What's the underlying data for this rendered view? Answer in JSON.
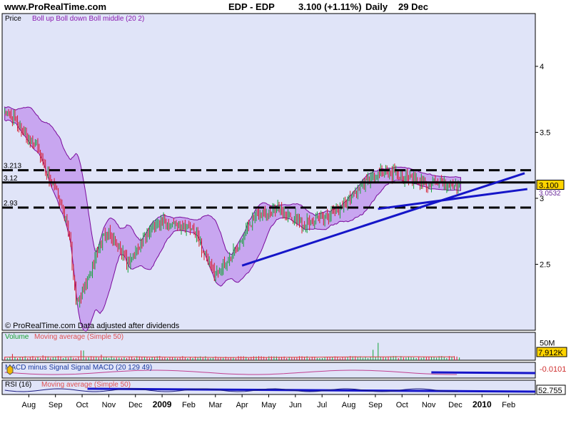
{
  "header": {
    "site": "www.ProRealTime.com",
    "instrument": "EDP - EDP",
    "quote": "3.100 (+1.11%)",
    "timeframe": "Daily",
    "date": "29 Dec"
  },
  "chart_data": [
    {
      "type": "candlestick",
      "panel": "price",
      "panel_label": "Price",
      "indicator_legend": "Boll up Boll down Boll middle (20 2)",
      "credit": "© ProRealTime.com Data adjusted after dividends",
      "ylim": [
        2.0,
        4.4
      ],
      "y_ticks": [
        "4",
        "3.5",
        "3",
        "2.5"
      ],
      "y_tick_values": [
        4,
        3.5,
        3,
        2.5
      ],
      "last_value": "3.100",
      "last_value_num": 3.1,
      "extra_right_label": "3.0532",
      "extra_right_value": 3.0532,
      "x_ticks": [
        "Aug",
        "Sep",
        "Oct",
        "Nov",
        "Dec",
        "2009",
        "Feb",
        "Mar",
        "Apr",
        "May",
        "Jun",
        "Jul",
        "Aug",
        "Sep",
        "Oct",
        "Nov",
        "Dec",
        "2010",
        "Feb"
      ],
      "x_tick_positions": [
        0.5,
        1.5,
        2.5,
        3.5,
        4.5,
        5.5,
        6.5,
        7.5,
        8.5,
        9.5,
        10.5,
        11.5,
        12.5,
        13.5,
        14.5,
        15.5,
        16.5,
        17.5,
        18.5
      ],
      "x_range": [
        -0.5,
        19.5
      ],
      "horizontal_levels": [
        {
          "label": "3.213",
          "value": 3.213,
          "style": "dashed"
        },
        {
          "label": "3.12",
          "value": 3.12,
          "style": "solid"
        },
        {
          "label": "2.93",
          "value": 2.93,
          "style": "dashed"
        }
      ],
      "trendlines": [
        {
          "x1": 8.5,
          "y1": 2.49,
          "x2": 19.1,
          "y2": 3.19
        },
        {
          "x1": 13.6,
          "y1": 2.92,
          "x2": 19.2,
          "y2": 3.07
        }
      ],
      "close_profile": [
        [
          -0.4,
          3.65
        ],
        [
          0.0,
          3.58
        ],
        [
          0.4,
          3.48
        ],
        [
          0.8,
          3.4
        ],
        [
          1.2,
          3.18
        ],
        [
          1.6,
          3.02
        ],
        [
          2.0,
          2.75
        ],
        [
          2.3,
          2.2
        ],
        [
          2.5,
          2.27
        ],
        [
          2.8,
          2.42
        ],
        [
          3.1,
          2.62
        ],
        [
          3.4,
          2.74
        ],
        [
          3.8,
          2.66
        ],
        [
          4.2,
          2.5
        ],
        [
          4.6,
          2.63
        ],
        [
          5.0,
          2.75
        ],
        [
          5.5,
          2.82
        ],
        [
          6.0,
          2.81
        ],
        [
          6.4,
          2.79
        ],
        [
          6.8,
          2.72
        ],
        [
          7.2,
          2.52
        ],
        [
          7.5,
          2.42
        ],
        [
          7.9,
          2.5
        ],
        [
          8.3,
          2.64
        ],
        [
          8.8,
          2.82
        ],
        [
          9.3,
          2.9
        ],
        [
          9.8,
          2.93
        ],
        [
          10.3,
          2.87
        ],
        [
          10.8,
          2.8
        ],
        [
          11.3,
          2.84
        ],
        [
          11.8,
          2.88
        ],
        [
          12.3,
          2.95
        ],
        [
          12.7,
          3.04
        ],
        [
          13.1,
          3.12
        ],
        [
          13.5,
          3.16
        ],
        [
          13.9,
          3.2
        ],
        [
          14.3,
          3.18
        ],
        [
          14.8,
          3.14
        ],
        [
          15.3,
          3.12
        ],
        [
          15.8,
          3.1
        ],
        [
          16.2,
          3.1
        ],
        [
          16.7,
          3.1
        ]
      ]
    },
    {
      "type": "bar",
      "panel": "volume",
      "legend": [
        "Volume",
        "Moving average (Simple 50)"
      ],
      "y_ticks": [
        "50M"
      ],
      "y_tick_values": [
        50
      ],
      "ylim": [
        0,
        80
      ],
      "units": "M",
      "last_value": "7,912K",
      "last_value_num": 7.912,
      "spikes": [
        [
          -0.1,
          18
        ],
        [
          1.0,
          14
        ],
        [
          2.5,
          28
        ],
        [
          3.2,
          16
        ],
        [
          13.4,
          30
        ],
        [
          13.6,
          50
        ],
        [
          14.2,
          12
        ]
      ],
      "base_level": 6
    },
    {
      "type": "line",
      "panel": "macd",
      "legend": "MACD minus Signal   Signal   MACD (20 129 49)",
      "last_value": "-0.0101",
      "last_value_num": -0.0101
    },
    {
      "type": "line",
      "panel": "rsi",
      "legend": [
        "RSI (16)",
        "Moving average (Simple 50)"
      ],
      "last_value": "52.755",
      "last_value_num": 52.755
    }
  ],
  "colors": {
    "panel_bg": "#e0e4f8",
    "band_fill": "#c8a6f0",
    "band_edge": "#7a0a9c",
    "up_candle": "#15a33a",
    "down_candle": "#d81b2b",
    "trendline": "#1515c8",
    "last_value_bg": "#ffd400"
  },
  "icons": {
    "macd": "bell-icon",
    "rsi": "bell-icon"
  }
}
